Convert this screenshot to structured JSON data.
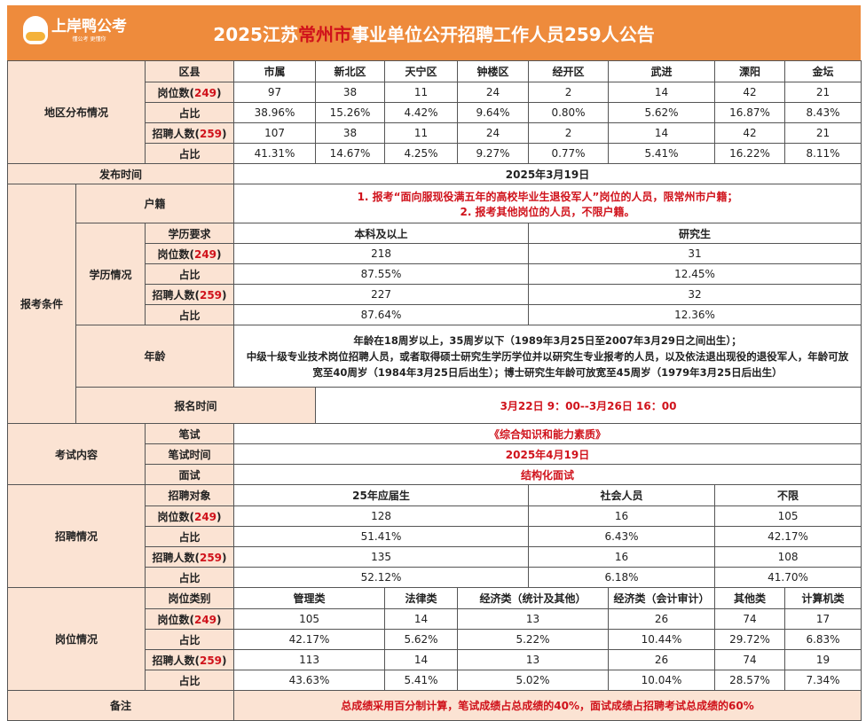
{
  "header": {
    "logo_text": "上岸鸭公考",
    "logo_sub": "懂公考 更懂你",
    "title_pre": "2025江苏",
    "title_city": "常州市",
    "title_post": "事业单位公开招聘工作人员259人公告",
    "accent": "#EE8B3C",
    "red": "#D0121B"
  },
  "labels": {
    "posts": "岗位数",
    "hires": "招聘人数",
    "ratio": "占比",
    "posts_total": "249",
    "hires_total": "259"
  },
  "region": {
    "section": "地区分布情况",
    "head": "区县",
    "cols": [
      "市属",
      "新北区",
      "天宁区",
      "钟楼区",
      "经开区",
      "武进",
      "溧阳",
      "金坛"
    ],
    "posts": [
      "97",
      "38",
      "11",
      "24",
      "2",
      "14",
      "42",
      "21"
    ],
    "posts_ratio": [
      "38.96%",
      "15.26%",
      "4.42%",
      "9.64%",
      "0.80%",
      "5.62%",
      "16.87%",
      "8.43%"
    ],
    "hires": [
      "107",
      "38",
      "11",
      "24",
      "2",
      "14",
      "42",
      "21"
    ],
    "hires_ratio": [
      "41.31%",
      "14.67%",
      "4.25%",
      "9.27%",
      "0.77%",
      "5.41%",
      "16.22%",
      "8.11%"
    ]
  },
  "publish": {
    "label": "发布时间",
    "value": "2025年3月19日"
  },
  "conditions": {
    "section": "报考条件",
    "huji_label": "户籍",
    "huji": [
      "1. 报考“面向服现役满五年的高校毕业生退役军人”岗位的人员，限常州市户籍；",
      "2. 报考其他岗位的人员，不限户籍。"
    ],
    "edu_section": "学历情况",
    "edu_head": "学历要求",
    "edu_cols": [
      "本科及以上",
      "研究生"
    ],
    "posts": [
      "218",
      "31"
    ],
    "posts_ratio": [
      "87.55%",
      "12.45%"
    ],
    "hires": [
      "227",
      "32"
    ],
    "hires_ratio": [
      "87.64%",
      "12.36%"
    ],
    "age_label": "年龄",
    "age": [
      "年龄在18周岁以上，35周岁以下（1989年3月25日至2007年3月29日之间出生）；",
      "中级十级专业技术岗位招聘人员，或者取得硕士研究生学历学位并以研究生专业报考的人员，以及依法退出现役的退役军人，年龄可放宽至40周岁（1984年3月25日后出生）；博士研究生年龄可放宽至45周岁（1979年3月25日后出生）"
    ]
  },
  "signup": {
    "label": "报名时间",
    "value": "3月22日 9：00--3月26日 16：00"
  },
  "exam": {
    "section": "考试内容",
    "written_label": "笔试",
    "written": "《综合知识和能力素质》",
    "written_time_label": "笔试时间",
    "written_time": "2025年4月19日",
    "interview_label": "面试",
    "interview": "结构化面试"
  },
  "recruit": {
    "section": "招聘情况",
    "head": "招聘对象",
    "cols": [
      "25年应届生",
      "社会人员",
      "不限"
    ],
    "posts": [
      "128",
      "16",
      "105"
    ],
    "posts_ratio": [
      "51.41%",
      "6.43%",
      "42.17%"
    ],
    "hires": [
      "135",
      "16",
      "108"
    ],
    "hires_ratio": [
      "52.12%",
      "6.18%",
      "41.70%"
    ]
  },
  "category": {
    "section": "岗位情况",
    "head": "岗位类别",
    "cols": [
      "管理类",
      "法律类",
      "经济类（统计及其他）",
      "经济类（会计审计）",
      "其他类",
      "计算机类"
    ],
    "posts": [
      "105",
      "14",
      "13",
      "26",
      "74",
      "17"
    ],
    "posts_ratio": [
      "42.17%",
      "5.62%",
      "5.22%",
      "10.44%",
      "29.72%",
      "6.83%"
    ],
    "hires": [
      "113",
      "14",
      "13",
      "26",
      "74",
      "19"
    ],
    "hires_ratio": [
      "43.63%",
      "5.41%",
      "5.02%",
      "10.04%",
      "28.57%",
      "7.34%"
    ]
  },
  "note": {
    "label": "备注",
    "value": "总成绩采用百分制计算，笔试成绩占总成绩的40%，面试成绩占招聘考试总成绩的60%"
  }
}
